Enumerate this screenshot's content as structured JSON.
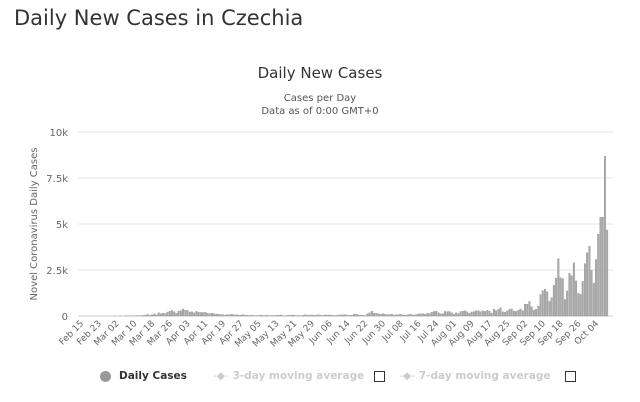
{
  "page": {
    "title": "Daily New Cases in Czechia"
  },
  "chart_data": {
    "type": "bar",
    "title": "Daily New Cases",
    "subtitle": [
      "Cases per Day",
      "Data as of 0:00 GMT+0"
    ],
    "ylabel": "Novel Coronavirus Daily Cases",
    "xlabel": "",
    "ylim": [
      0,
      10000
    ],
    "yticks": [
      "0",
      "2.5k",
      "5k",
      "7.5k",
      "10k"
    ],
    "ytick_values": [
      0,
      2500,
      5000,
      7500,
      10000
    ],
    "grid": true,
    "legend_position": "bottom",
    "colors": {
      "bar": "#aaaaaa",
      "bar_edge": "#8a8a8a",
      "grid": "#e6e6e6"
    },
    "xticks": [
      "Feb 15",
      "Feb 23",
      "Mar 02",
      "Mar 10",
      "Mar 18",
      "Mar 26",
      "Apr 03",
      "Apr 11",
      "Apr 19",
      "Apr 27",
      "May 05",
      "May 13",
      "May 21",
      "May 29",
      "Jun 06",
      "Jun 14",
      "Jun 22",
      "Jun 30",
      "Jul 08",
      "Jul 16",
      "Jul 24",
      "Aug 01",
      "Aug 09",
      "Aug 17",
      "Aug 25",
      "Sep 02",
      "Sep 10",
      "Sep 18",
      "Sep 26",
      "Oct 04"
    ],
    "series": [
      {
        "name": "Daily Cases",
        "by_month": [
          {
            "month": "Feb",
            "first_day": 15,
            "values": [
              0,
              0,
              0,
              0,
              0,
              0,
              0,
              0,
              0,
              0,
              0,
              0,
              0,
              0,
              0
            ]
          },
          {
            "month": "Mar",
            "first_day": 1,
            "values": [
              3,
              0,
              2,
              3,
              0,
              7,
              7,
              12,
              6,
              8,
              29,
              22,
              24,
              35,
              51,
              85,
              36,
              67,
              113,
              67,
              180,
              119,
              145,
              131,
              216,
              260,
              299,
              232,
              147,
              270,
              285
            ]
          },
          {
            "month": "Apr",
            "first_day": 1,
            "values": [
              380,
              315,
              305,
              219,
              230,
              171,
              250,
              211,
              195,
              187,
              210,
              150,
              130,
              150,
              118,
              110,
              95,
              80,
              70,
              55,
              75,
              80,
              90,
              60,
              70,
              50,
              55,
              65,
              50,
              45
            ]
          },
          {
            "month": "May",
            "first_day": 1,
            "values": [
              30,
              40,
              25,
              20,
              30,
              50,
              25,
              30,
              40,
              20,
              30,
              25,
              35,
              40,
              50,
              20,
              15,
              30,
              40,
              50,
              40,
              20,
              30,
              15,
              40,
              70,
              50,
              40,
              60,
              45,
              50
            ]
          },
          {
            "month": "Jun",
            "first_day": 1,
            "values": [
              70,
              40,
              30,
              60,
              50,
              60,
              40,
              30,
              30,
              50,
              70,
              60,
              80,
              50,
              30,
              40,
              90,
              100,
              60,
              40,
              40,
              20,
              120,
              170,
              260,
              160,
              140,
              130,
              100,
              120
            ]
          },
          {
            "month": "Jul",
            "first_day": 1,
            "values": [
              90,
              70,
              80,
              100,
              50,
              70,
              80,
              90,
              60,
              40,
              60,
              100,
              80,
              50,
              80,
              110,
              120,
              130,
              90,
              150,
              120,
              200,
              250,
              270,
              180,
              120,
              120,
              250,
              230,
              250,
              180
            ]
          },
          {
            "month": "Aug",
            "first_day": 1,
            "values": [
              100,
              170,
              120,
              240,
              260,
              290,
              230,
              150,
              220,
              240,
              280,
              290,
              230,
              280,
              250,
              310,
              260,
              160,
              370,
              290,
              360,
              450,
              230,
              200,
              280,
              360,
              380,
              270,
              250,
              320,
              380
            ]
          },
          {
            "month": "Sep",
            "first_day": 1,
            "values": [
              290,
              650,
              640,
              800,
              500,
              310,
              360,
              540,
              1160,
              1380,
              1450,
              1320,
              800,
              1000,
              1670,
              2060,
              3120,
              2080,
              2020,
              900,
              1360,
              2330,
              2190,
              2890,
              1910,
              1230,
              1180,
              1890,
              2850,
              3440
            ]
          },
          {
            "month": "Oct",
            "first_day": 1,
            "values": [
              3790,
              2480,
              1780,
              3070,
              4450,
              5370,
              5370,
              8680,
              4670
            ]
          }
        ]
      }
    ],
    "legend": [
      {
        "label": "Daily Cases",
        "active": true
      },
      {
        "label": "3-day moving average",
        "active": false
      },
      {
        "label": "7-day moving average",
        "active": false
      }
    ]
  }
}
